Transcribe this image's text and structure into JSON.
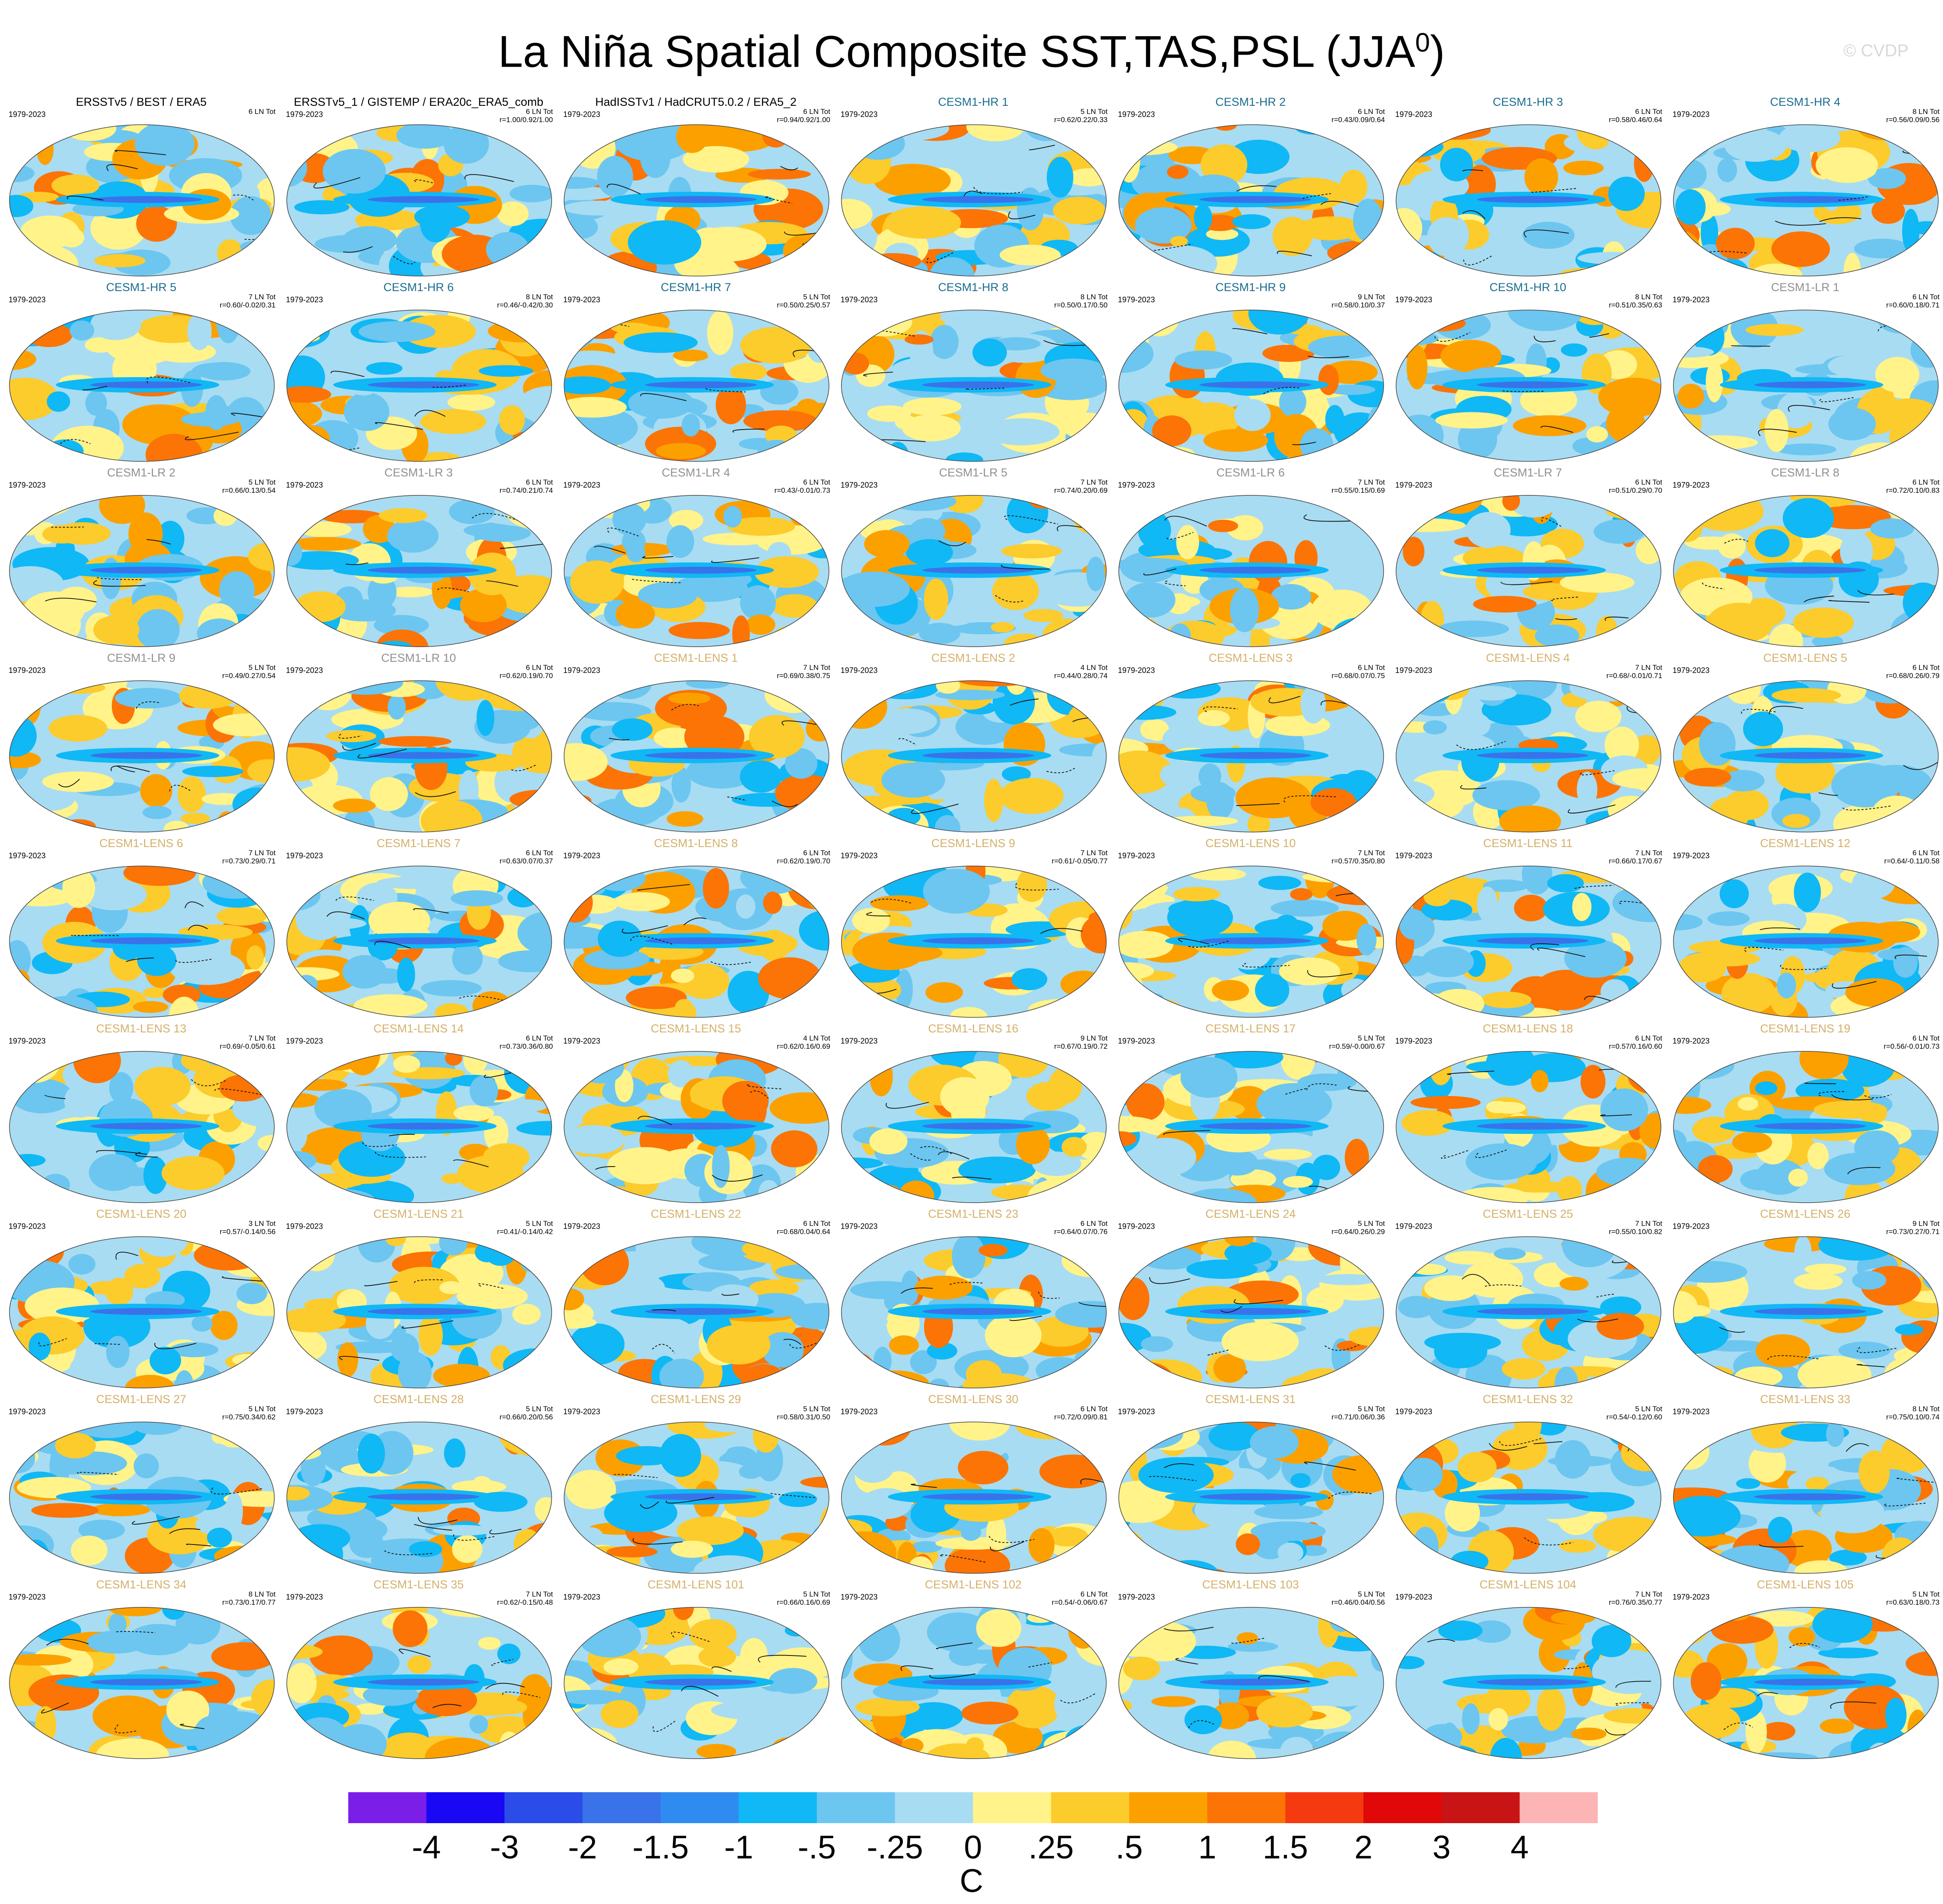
{
  "title": {
    "text": "La Niña Spatial Composite SST,TAS,PSL (JJA",
    "superscript": "0",
    "close": ")"
  },
  "watermark": "© CVDP",
  "title_colors": {
    "obs": "#000000",
    "hr": "#1a6e8e",
    "lr": "#909090",
    "lens": "#d4b06a"
  },
  "colorbar": {
    "colors": [
      "#7b1ee8",
      "#1a08f5",
      "#2b4ce8",
      "#3a72ea",
      "#2e8cf0",
      "#10b8f5",
      "#6cc6f0",
      "#a8dcf2",
      "#fff38a",
      "#fccb2c",
      "#fca000",
      "#fb7405",
      "#f53a10",
      "#e00808",
      "#c81414",
      "#fcb4b4"
    ],
    "ticks": [
      "-4",
      "-3",
      "-2",
      "-1.5",
      "-1",
      "-.5",
      "-.25",
      "0",
      ".25",
      ".5",
      "1",
      "1.5",
      "2",
      "3",
      "4"
    ],
    "units": "C"
  },
  "chart_data": {
    "type": "heatmap",
    "season": "JJA0",
    "panels": [
      {
        "title": "ERSSTv5 / BEST / ERA5",
        "group": "obs",
        "years": "1979-2023",
        "count": "6 LN Tot",
        "stats": ""
      },
      {
        "title": "ERSSTv5_1 / GISTEMP / ERA20c_ERA5_comb",
        "group": "obs",
        "years": "1979-2023",
        "count": "6 LN Tot",
        "stats": "r=1.00/0.92/1.00"
      },
      {
        "title": "HadISSTv1 / HadCRUT5.0.2 / ERA5_2",
        "group": "obs",
        "years": "1979-2023",
        "count": "6 LN Tot",
        "stats": "r=0.94/0.92/1.00"
      },
      {
        "title": "CESM1-HR 1",
        "group": "hr",
        "years": "1979-2023",
        "count": "5 LN Tot",
        "stats": "r=0.62/0.22/0.33"
      },
      {
        "title": "CESM1-HR 2",
        "group": "hr",
        "years": "1979-2023",
        "count": "6 LN Tot",
        "stats": "r=0.43/0.09/0.64"
      },
      {
        "title": "CESM1-HR 3",
        "group": "hr",
        "years": "1979-2023",
        "count": "6 LN Tot",
        "stats": "r=0.58/0.46/0.64"
      },
      {
        "title": "CESM1-HR 4",
        "group": "hr",
        "years": "1979-2023",
        "count": "8 LN Tot",
        "stats": "r=0.56/0.09/0.56"
      },
      {
        "title": "CESM1-HR 5",
        "group": "hr",
        "years": "1979-2023",
        "count": "7 LN Tot",
        "stats": "r=0.60/-0.02/0.31"
      },
      {
        "title": "CESM1-HR 6",
        "group": "hr",
        "years": "1979-2023",
        "count": "8 LN Tot",
        "stats": "r=0.46/-0.42/0.30"
      },
      {
        "title": "CESM1-HR 7",
        "group": "hr",
        "years": "1979-2023",
        "count": "5 LN Tot",
        "stats": "r=0.50/0.25/0.57"
      },
      {
        "title": "CESM1-HR 8",
        "group": "hr",
        "years": "1979-2023",
        "count": "8 LN Tot",
        "stats": "r=0.50/0.17/0.50"
      },
      {
        "title": "CESM1-HR 9",
        "group": "hr",
        "years": "1979-2023",
        "count": "9 LN Tot",
        "stats": "r=0.58/0.10/0.37"
      },
      {
        "title": "CESM1-HR 10",
        "group": "hr",
        "years": "1979-2023",
        "count": "8 LN Tot",
        "stats": "r=0.51/0.35/0.63"
      },
      {
        "title": "CESM1-LR 1",
        "group": "lr",
        "years": "1979-2023",
        "count": "6 LN Tot",
        "stats": "r=0.60/0.18/0.71"
      },
      {
        "title": "CESM1-LR 2",
        "group": "lr",
        "years": "1979-2023",
        "count": "5 LN Tot",
        "stats": "r=0.66/0.13/0.54"
      },
      {
        "title": "CESM1-LR 3",
        "group": "lr",
        "years": "1979-2023",
        "count": "6 LN Tot",
        "stats": "r=0.74/0.21/0.74"
      },
      {
        "title": "CESM1-LR 4",
        "group": "lr",
        "years": "1979-2023",
        "count": "6 LN Tot",
        "stats": "r=0.43/-0.01/0.73"
      },
      {
        "title": "CESM1-LR 5",
        "group": "lr",
        "years": "1979-2023",
        "count": "7 LN Tot",
        "stats": "r=0.74/0.20/0.69"
      },
      {
        "title": "CESM1-LR 6",
        "group": "lr",
        "years": "1979-2023",
        "count": "7 LN Tot",
        "stats": "r=0.55/0.15/0.69"
      },
      {
        "title": "CESM1-LR 7",
        "group": "lr",
        "years": "1979-2023",
        "count": "6 LN Tot",
        "stats": "r=0.51/0.29/0.70"
      },
      {
        "title": "CESM1-LR 8",
        "group": "lr",
        "years": "1979-2023",
        "count": "6 LN Tot",
        "stats": "r=0.72/0.10/0.83"
      },
      {
        "title": "CESM1-LR 9",
        "group": "lr",
        "years": "1979-2023",
        "count": "5 LN Tot",
        "stats": "r=0.49/0.27/0.54"
      },
      {
        "title": "CESM1-LR 10",
        "group": "lr",
        "years": "1979-2023",
        "count": "6 LN Tot",
        "stats": "r=0.62/0.19/0.70"
      },
      {
        "title": "CESM1-LENS 1",
        "group": "lens",
        "years": "1979-2023",
        "count": "7 LN Tot",
        "stats": "r=0.69/0.38/0.75"
      },
      {
        "title": "CESM1-LENS 2",
        "group": "lens",
        "years": "1979-2023",
        "count": "4 LN Tot",
        "stats": "r=0.44/0.28/0.74"
      },
      {
        "title": "CESM1-LENS 3",
        "group": "lens",
        "years": "1979-2023",
        "count": "6 LN Tot",
        "stats": "r=0.68/0.07/0.75"
      },
      {
        "title": "CESM1-LENS 4",
        "group": "lens",
        "years": "1979-2023",
        "count": "7 LN Tot",
        "stats": "r=0.68/-0.01/0.71"
      },
      {
        "title": "CESM1-LENS 5",
        "group": "lens",
        "years": "1979-2023",
        "count": "6 LN Tot",
        "stats": "r=0.68/0.26/0.79"
      },
      {
        "title": "CESM1-LENS 6",
        "group": "lens",
        "years": "1979-2023",
        "count": "7 LN Tot",
        "stats": "r=0.73/0.29/0.71"
      },
      {
        "title": "CESM1-LENS 7",
        "group": "lens",
        "years": "1979-2023",
        "count": "6 LN Tot",
        "stats": "r=0.63/0.07/0.37"
      },
      {
        "title": "CESM1-LENS 8",
        "group": "lens",
        "years": "1979-2023",
        "count": "6 LN Tot",
        "stats": "r=0.62/0.19/0.70"
      },
      {
        "title": "CESM1-LENS 9",
        "group": "lens",
        "years": "1979-2023",
        "count": "7 LN Tot",
        "stats": "r=0.61/-0.05/0.77"
      },
      {
        "title": "CESM1-LENS 10",
        "group": "lens",
        "years": "1979-2023",
        "count": "7 LN Tot",
        "stats": "r=0.57/0.35/0.80"
      },
      {
        "title": "CESM1-LENS 11",
        "group": "lens",
        "years": "1979-2023",
        "count": "7 LN Tot",
        "stats": "r=0.66/0.17/0.67"
      },
      {
        "title": "CESM1-LENS 12",
        "group": "lens",
        "years": "1979-2023",
        "count": "6 LN Tot",
        "stats": "r=0.64/-0.11/0.58"
      },
      {
        "title": "CESM1-LENS 13",
        "group": "lens",
        "years": "1979-2023",
        "count": "7 LN Tot",
        "stats": "r=0.69/-0.05/0.61"
      },
      {
        "title": "CESM1-LENS 14",
        "group": "lens",
        "years": "1979-2023",
        "count": "6 LN Tot",
        "stats": "r=0.73/0.36/0.80"
      },
      {
        "title": "CESM1-LENS 15",
        "group": "lens",
        "years": "1979-2023",
        "count": "4 LN Tot",
        "stats": "r=0.62/0.16/0.69"
      },
      {
        "title": "CESM1-LENS 16",
        "group": "lens",
        "years": "1979-2023",
        "count": "9 LN Tot",
        "stats": "r=0.67/0.19/0.72"
      },
      {
        "title": "CESM1-LENS 17",
        "group": "lens",
        "years": "1979-2023",
        "count": "5 LN Tot",
        "stats": "r=0.59/-0.00/0.67"
      },
      {
        "title": "CESM1-LENS 18",
        "group": "lens",
        "years": "1979-2023",
        "count": "6 LN Tot",
        "stats": "r=0.57/0.16/0.60"
      },
      {
        "title": "CESM1-LENS 19",
        "group": "lens",
        "years": "1979-2023",
        "count": "6 LN Tot",
        "stats": "r=0.56/-0.01/0.73"
      },
      {
        "title": "CESM1-LENS 20",
        "group": "lens",
        "years": "1979-2023",
        "count": "3 LN Tot",
        "stats": "r=0.57/-0.14/0.56"
      },
      {
        "title": "CESM1-LENS 21",
        "group": "lens",
        "years": "1979-2023",
        "count": "5 LN Tot",
        "stats": "r=0.41/-0.14/0.42"
      },
      {
        "title": "CESM1-LENS 22",
        "group": "lens",
        "years": "1979-2023",
        "count": "6 LN Tot",
        "stats": "r=0.68/0.04/0.64"
      },
      {
        "title": "CESM1-LENS 23",
        "group": "lens",
        "years": "1979-2023",
        "count": "6 LN Tot",
        "stats": "r=0.64/0.07/0.76"
      },
      {
        "title": "CESM1-LENS 24",
        "group": "lens",
        "years": "1979-2023",
        "count": "5 LN Tot",
        "stats": "r=0.64/0.26/0.29"
      },
      {
        "title": "CESM1-LENS 25",
        "group": "lens",
        "years": "1979-2023",
        "count": "7 LN Tot",
        "stats": "r=0.55/0.10/0.82"
      },
      {
        "title": "CESM1-LENS 26",
        "group": "lens",
        "years": "1979-2023",
        "count": "9 LN Tot",
        "stats": "r=0.73/0.27/0.71"
      },
      {
        "title": "CESM1-LENS 27",
        "group": "lens",
        "years": "1979-2023",
        "count": "5 LN Tot",
        "stats": "r=0.75/0.34/0.62"
      },
      {
        "title": "CESM1-LENS 28",
        "group": "lens",
        "years": "1979-2023",
        "count": "5 LN Tot",
        "stats": "r=0.66/0.20/0.56"
      },
      {
        "title": "CESM1-LENS 29",
        "group": "lens",
        "years": "1979-2023",
        "count": "5 LN Tot",
        "stats": "r=0.58/0.31/0.50"
      },
      {
        "title": "CESM1-LENS 30",
        "group": "lens",
        "years": "1979-2023",
        "count": "6 LN Tot",
        "stats": "r=0.72/0.09/0.81"
      },
      {
        "title": "CESM1-LENS 31",
        "group": "lens",
        "years": "1979-2023",
        "count": "5 LN Tot",
        "stats": "r=0.71/0.06/0.36"
      },
      {
        "title": "CESM1-LENS 32",
        "group": "lens",
        "years": "1979-2023",
        "count": "5 LN Tot",
        "stats": "r=0.54/-0.12/0.60"
      },
      {
        "title": "CESM1-LENS 33",
        "group": "lens",
        "years": "1979-2023",
        "count": "8 LN Tot",
        "stats": "r=0.75/0.10/0.74"
      },
      {
        "title": "CESM1-LENS 34",
        "group": "lens",
        "years": "1979-2023",
        "count": "8 LN Tot",
        "stats": "r=0.73/0.17/0.77"
      },
      {
        "title": "CESM1-LENS 35",
        "group": "lens",
        "years": "1979-2023",
        "count": "7 LN Tot",
        "stats": "r=0.62/-0.15/0.48"
      },
      {
        "title": "CESM1-LENS 101",
        "group": "lens",
        "years": "1979-2023",
        "count": "5 LN Tot",
        "stats": "r=0.66/0.16/0.69"
      },
      {
        "title": "CESM1-LENS 102",
        "group": "lens",
        "years": "1979-2023",
        "count": "6 LN Tot",
        "stats": "r=0.54/-0.06/0.67"
      },
      {
        "title": "CESM1-LENS 103",
        "group": "lens",
        "years": "1979-2023",
        "count": "5 LN Tot",
        "stats": "r=0.46/0.04/0.56"
      },
      {
        "title": "CESM1-LENS 104",
        "group": "lens",
        "years": "1979-2023",
        "count": "7 LN Tot",
        "stats": "r=0.76/0.35/0.77"
      },
      {
        "title": "CESM1-LENS 105",
        "group": "lens",
        "years": "1979-2023",
        "count": "5 LN Tot",
        "stats": "r=0.63/0.18/0.73"
      }
    ]
  }
}
